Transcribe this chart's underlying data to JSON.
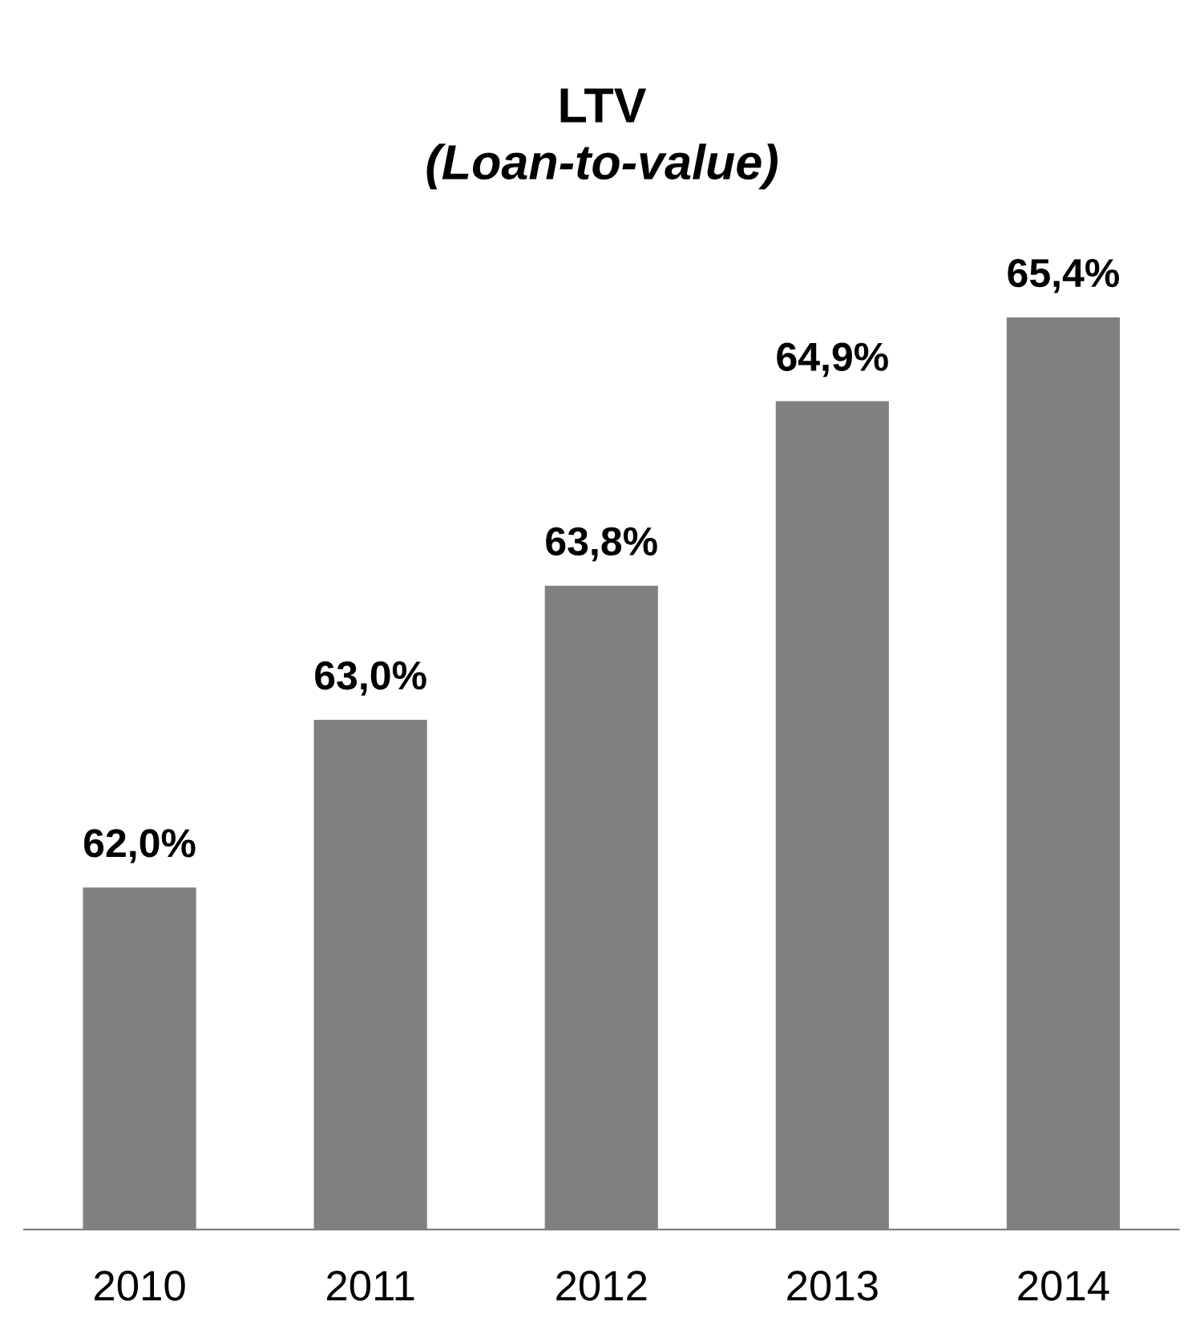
{
  "chart_data": {
    "type": "bar",
    "title": "LTV",
    "subtitle": "(Loan-to-value)",
    "categories": [
      "2010",
      "2011",
      "2012",
      "2013",
      "2014"
    ],
    "values": [
      62.0,
      63.0,
      63.8,
      64.9,
      65.4
    ],
    "value_labels": [
      "62,0%",
      "63,0%",
      "63,8%",
      "64,9%",
      "65,4%"
    ],
    "color": "#808080",
    "tick_labels": "x",
    "grid": false,
    "legend": false
  }
}
